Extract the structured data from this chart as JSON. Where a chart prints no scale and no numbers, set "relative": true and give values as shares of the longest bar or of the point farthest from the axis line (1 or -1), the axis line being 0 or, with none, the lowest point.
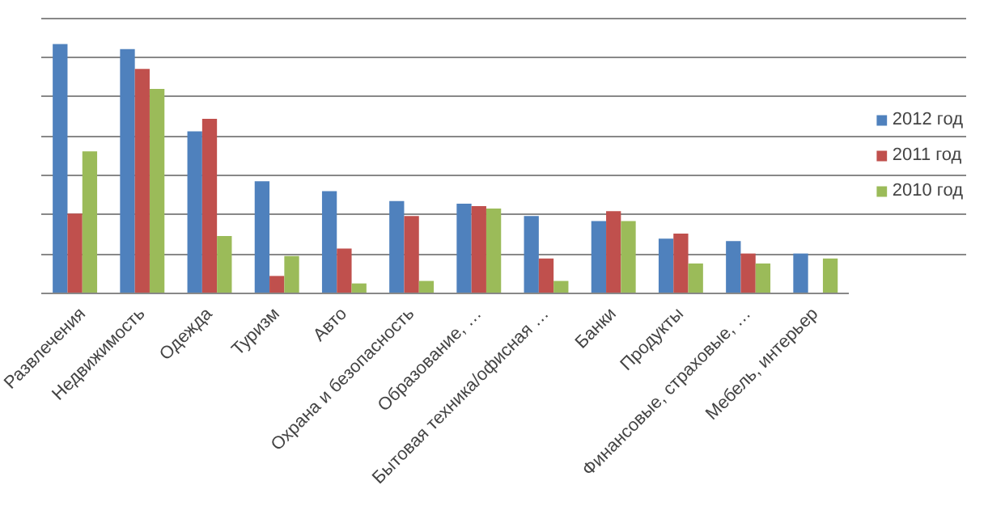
{
  "chart_data": {
    "type": "bar",
    "relative": true,
    "grid": "y",
    "legend": "right",
    "categories": [
      "Развлечения",
      "Недвижимость",
      "Одежда",
      "Туризм",
      "Авто",
      "Охрана и безопасность",
      "Образование, …",
      "Бытовая техника/офисная …",
      "Банки",
      "Продукты",
      "Финансовые, страховые, …",
      "Мебель, интерьер"
    ],
    "series": [
      {
        "name": "2012 год",
        "color": "#4f81bd",
        "values": [
          1,
          0.98,
          0.65,
          0.45,
          0.41,
          0.37,
          0.36,
          0.31,
          0.29,
          0.22,
          0.21,
          0.16
        ]
      },
      {
        "name": "2011 год",
        "color": "#c0504d",
        "values": [
          0.32,
          0.9,
          0.7,
          0.07,
          0.18,
          0.31,
          0.35,
          0.14,
          0.33,
          0.24,
          0.16,
          null
        ]
      },
      {
        "name": "2010 год",
        "color": "#9bbb59",
        "values": [
          0.57,
          0.82,
          0.23,
          0.15,
          0.04,
          0.05,
          0.34,
          0.05,
          0.29,
          0.12,
          0.12,
          0.14
        ]
      }
    ]
  }
}
